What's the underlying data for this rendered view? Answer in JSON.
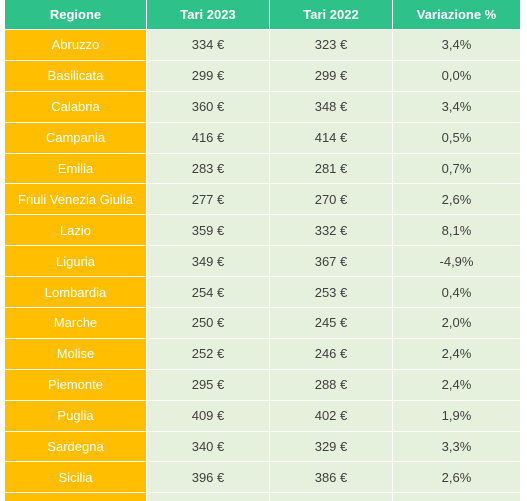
{
  "headers": [
    "Regione",
    "Tari 2023",
    "Tari 2022",
    "Variazione %"
  ],
  "rows": [
    [
      "Abruzzo",
      "334 €",
      "323 €",
      "3,4%"
    ],
    [
      "Basilicata",
      "299 €",
      "299 €",
      "0,0%"
    ],
    [
      "Calabria",
      "360 €",
      "348 €",
      "3,4%"
    ],
    [
      "Campania",
      "416 €",
      "414 €",
      "0,5%"
    ],
    [
      "Emilia",
      "283 €",
      "281 €",
      "0,7%"
    ],
    [
      "Friuli Venezia Giulia",
      "277 €",
      "270 €",
      "2,6%"
    ],
    [
      "Lazio",
      "359 €",
      "332 €",
      "8,1%"
    ],
    [
      "Liguria",
      "349 €",
      "367 €",
      "-4,9%"
    ],
    [
      "Lombardia",
      "254 €",
      "253 €",
      "0,4%"
    ],
    [
      "Marche",
      "250 €",
      "245 €",
      "2,0%"
    ],
    [
      "Molise",
      "252 €",
      "246 €",
      "2,4%"
    ],
    [
      "Piemonte",
      "295 €",
      "288 €",
      "2,4%"
    ],
    [
      "Puglia",
      "409 €",
      "402 €",
      "1,9%"
    ],
    [
      "Sardegna",
      "340 €",
      "329 €",
      "3,3%"
    ],
    [
      "Sicilia",
      "396 €",
      "386 €",
      "2,6%"
    ],
    [
      "",
      "",
      "",
      ""
    ]
  ],
  "colors": {
    "header_bg": "#2ec28a",
    "region_bg": "#ffbf00",
    "value_bg": "#e5f1dc"
  }
}
